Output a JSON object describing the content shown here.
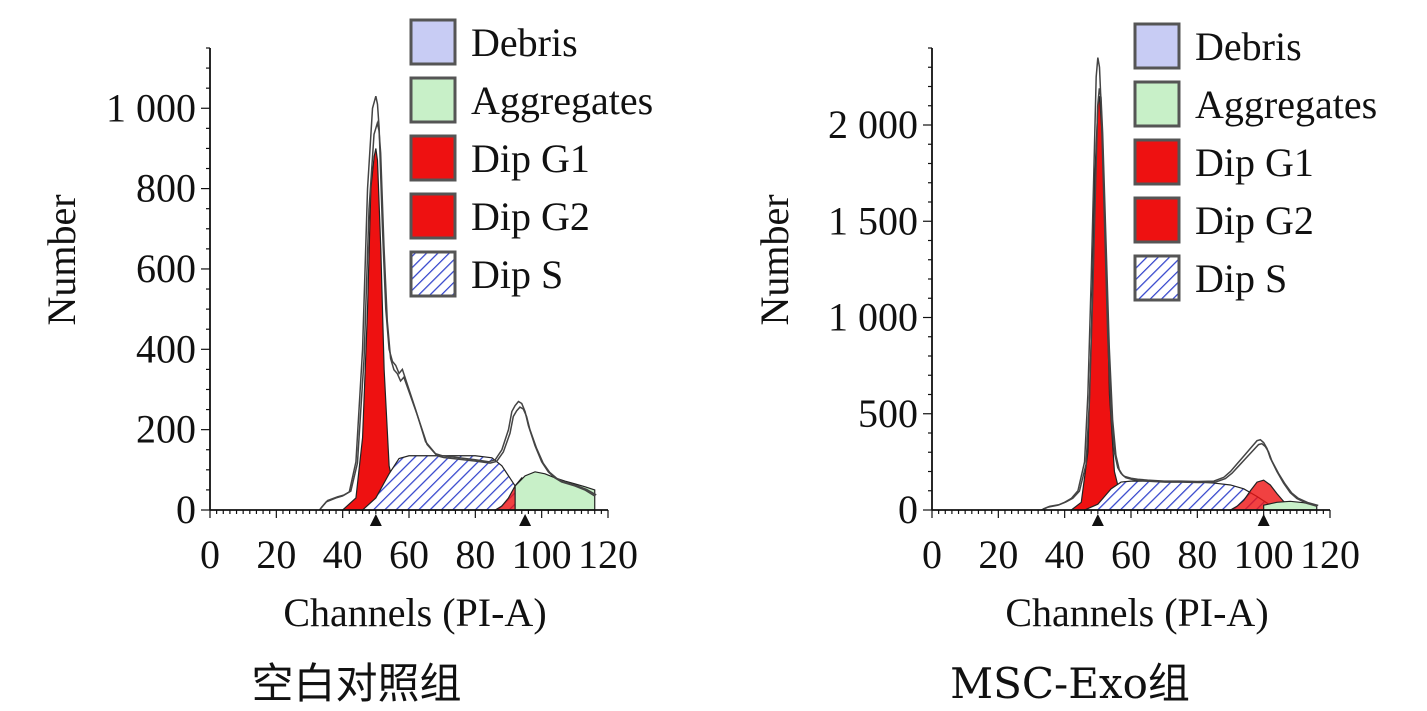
{
  "chart_data": [
    {
      "type": "area",
      "caption": "空白对照组",
      "xlabel": "Channels (PI-A)",
      "ylabel": "Number",
      "xlim": [
        0,
        120
      ],
      "ylim": [
        0,
        1150
      ],
      "x_ticks": [
        0,
        20,
        40,
        60,
        80,
        100,
        120
      ],
      "x_tick_labels": [
        "0",
        "20",
        "40",
        "60",
        "80",
        "100",
        "120"
      ],
      "y_ticks": [
        0,
        200,
        400,
        600,
        800,
        1000
      ],
      "y_tick_labels": [
        "0",
        "200",
        "400",
        "600",
        "800",
        "1 000"
      ],
      "peak_markers": [
        50,
        95
      ],
      "legend": {
        "placement": "top-right",
        "entries": [
          {
            "label": "Debris",
            "color": "#c8ccf4",
            "pattern": "solid"
          },
          {
            "label": "Aggregates",
            "color": "#c8f0c8",
            "pattern": "solid"
          },
          {
            "label": "Dip G1",
            "color": "#ee1111",
            "pattern": "solid"
          },
          {
            "label": "Dip G2",
            "color": "#ee1111",
            "pattern": "solid"
          },
          {
            "label": "Dip S",
            "color": "#3344cc",
            "pattern": "hatch"
          }
        ]
      },
      "series": [
        {
          "name": "Dip G1",
          "color": "#ee1111",
          "x": [
            40,
            44,
            46,
            47.5,
            48.5,
            49.5,
            50,
            50.5,
            51.5,
            52.5,
            54,
            56,
            58,
            62
          ],
          "y": [
            0,
            30,
            180,
            500,
            800,
            880,
            900,
            870,
            650,
            350,
            110,
            30,
            8,
            0
          ]
        },
        {
          "name": "Dip S",
          "color": "#3344cc",
          "x": [
            46,
            50,
            54,
            57,
            60,
            65,
            70,
            75,
            80,
            85,
            88,
            92,
            96,
            100
          ],
          "y": [
            0,
            30,
            90,
            128,
            135,
            135,
            135,
            135,
            135,
            130,
            110,
            60,
            15,
            0
          ]
        },
        {
          "name": "Dip G2",
          "color": "#ee1111",
          "x": [
            86,
            88,
            90,
            92,
            94,
            96,
            98,
            100,
            102,
            104,
            106
          ],
          "y": [
            0,
            10,
            30,
            60,
            80,
            72,
            55,
            35,
            18,
            6,
            0
          ]
        },
        {
          "name": "Aggregates",
          "color": "#c8f0c8",
          "x": [
            92,
            95,
            98,
            101,
            104,
            107,
            110,
            113,
            116,
            116
          ],
          "y": [
            60,
            85,
            95,
            90,
            80,
            72,
            65,
            58,
            50,
            0
          ]
        },
        {
          "name": "Histogram",
          "color": "#444444",
          "x": [
            33,
            35,
            38,
            40,
            42,
            44,
            46,
            47.5,
            49,
            50,
            50.5,
            51,
            52,
            53,
            54,
            55,
            56,
            57,
            58,
            60,
            62,
            65,
            68,
            70,
            75,
            80,
            84,
            86,
            88,
            90,
            91,
            92,
            93,
            94,
            95,
            96,
            98,
            100,
            102,
            104,
            106,
            110,
            113,
            116
          ],
          "y": [
            0,
            20,
            30,
            35,
            45,
            120,
            400,
            800,
            1000,
            1030,
            1010,
            950,
            700,
            500,
            400,
            370,
            360,
            340,
            350,
            300,
            250,
            170,
            140,
            135,
            130,
            125,
            120,
            125,
            150,
            200,
            245,
            260,
            270,
            265,
            245,
            210,
            160,
            120,
            95,
            80,
            70,
            60,
            50,
            35
          ]
        }
      ]
    },
    {
      "type": "area",
      "caption": "MSC-Exo组",
      "xlabel": "Channels (PI-A)",
      "ylabel": "Number",
      "xlim": [
        0,
        120
      ],
      "ylim": [
        0,
        2400
      ],
      "x_ticks": [
        0,
        20,
        40,
        60,
        80,
        100,
        120
      ],
      "x_tick_labels": [
        "0",
        "20",
        "40",
        "60",
        "80",
        "100",
        "120"
      ],
      "y_ticks": [
        0,
        500,
        1000,
        1500,
        2000
      ],
      "y_tick_labels": [
        "0",
        "500",
        "1 000",
        "1 500",
        "2 000"
      ],
      "peak_markers": [
        50,
        100
      ],
      "legend": {
        "placement": "top-right",
        "entries": [
          {
            "label": "Debris",
            "color": "#c8ccf4",
            "pattern": "solid"
          },
          {
            "label": "Aggregates",
            "color": "#c8f0c8",
            "pattern": "solid"
          },
          {
            "label": "Dip G1",
            "color": "#ee1111",
            "pattern": "solid"
          },
          {
            "label": "Dip G2",
            "color": "#ee1111",
            "pattern": "solid"
          },
          {
            "label": "Dip S",
            "color": "#3344cc",
            "pattern": "hatch"
          }
        ]
      },
      "series": [
        {
          "name": "Dip G1",
          "color": "#ee1111",
          "x": [
            42,
            45,
            47,
            48,
            49,
            50,
            50.5,
            51.5,
            52.5,
            53.5,
            55,
            57,
            60,
            63
          ],
          "y": [
            0,
            40,
            300,
            900,
            1700,
            2100,
            2150,
            1900,
            1300,
            600,
            200,
            60,
            15,
            0
          ]
        },
        {
          "name": "Dip S",
          "color": "#3344cc",
          "x": [
            46,
            50,
            54,
            57,
            60,
            65,
            70,
            75,
            80,
            85,
            90,
            94,
            98,
            102,
            106
          ],
          "y": [
            0,
            30,
            110,
            145,
            150,
            150,
            148,
            148,
            145,
            140,
            130,
            110,
            70,
            25,
            0
          ]
        },
        {
          "name": "Dip G2",
          "color": "#ee1111",
          "x": [
            90,
            92,
            94,
            96,
            98,
            100,
            102,
            104,
            106,
            108,
            110
          ],
          "y": [
            0,
            20,
            50,
            100,
            145,
            155,
            130,
            85,
            45,
            15,
            0
          ]
        },
        {
          "name": "Aggregates",
          "color": "#c8f0c8",
          "x": [
            100,
            104,
            108,
            112,
            116,
            116
          ],
          "y": [
            25,
            40,
            45,
            38,
            25,
            0
          ]
        },
        {
          "name": "Histogram",
          "color": "#444444",
          "x": [
            33,
            35,
            38,
            40,
            42,
            44,
            46,
            47,
            48,
            49,
            49.5,
            50,
            50.5,
            51,
            52,
            53,
            54,
            55,
            56,
            57,
            58,
            60,
            62,
            65,
            70,
            75,
            80,
            85,
            88,
            90,
            92,
            94,
            96,
            98,
            99,
            100,
            101,
            102,
            104,
            106,
            108,
            110,
            113,
            116
          ],
          "y": [
            0,
            15,
            25,
            40,
            60,
            100,
            250,
            600,
            1200,
            1900,
            2250,
            2350,
            2300,
            2100,
            1500,
            900,
            500,
            300,
            220,
            190,
            175,
            165,
            160,
            155,
            150,
            150,
            148,
            150,
            170,
            200,
            240,
            280,
            320,
            360,
            365,
            350,
            320,
            270,
            200,
            140,
            90,
            60,
            35,
            20
          ]
        }
      ]
    }
  ]
}
